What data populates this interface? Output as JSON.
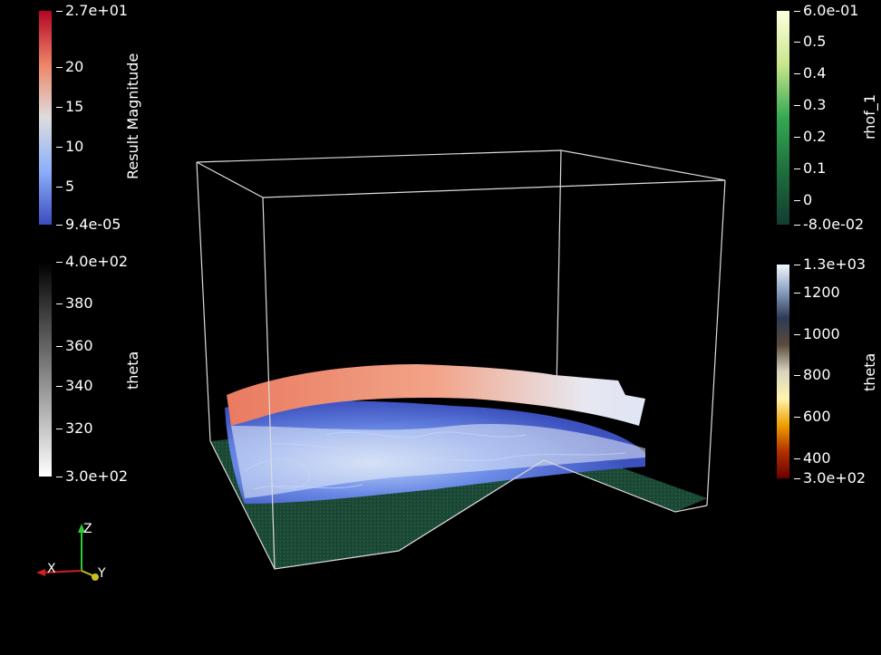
{
  "colorbars": {
    "result_magnitude": {
      "title": "Result Magnitude",
      "max_label": "2.7e+01",
      "min_label": "9.4e-05",
      "ticks": [
        "20",
        "15",
        "10",
        "5"
      ],
      "colors": [
        "#b40426",
        "#ee8468",
        "#dddddd",
        "#8caff9",
        "#3b4cc0"
      ]
    },
    "theta_gray": {
      "title": "theta",
      "max_label": "4.0e+02",
      "min_label": "3.0e+02",
      "ticks": [
        "380",
        "360",
        "340",
        "320"
      ],
      "colors": [
        "#000000",
        "#ffffff"
      ]
    },
    "rhof_1": {
      "title": "rhof_1",
      "max_label": "6.0e-01",
      "min_label": "-8.0e-02",
      "ticks": [
        "0.5",
        "0.4",
        "0.3",
        "0.2",
        "0.1",
        "0"
      ],
      "colors": [
        "#ffffe0",
        "#c8e68c",
        "#34a853",
        "#1e6e3c",
        "#143c32"
      ]
    },
    "theta_color": {
      "title": "theta",
      "max_label": "1.3e+03",
      "min_label": "3.0e+02",
      "ticks": [
        "1200",
        "1000",
        "800",
        "600",
        "400"
      ],
      "colors": [
        "#f2f6ff",
        "#8aa0c0",
        "#2d3a55",
        "#5a4a3a",
        "#d8d2c0",
        "#fff4b0",
        "#f0a000",
        "#b03000",
        "#6b0000"
      ]
    }
  },
  "axes": {
    "x": "X",
    "y": "Y",
    "z": "Z"
  }
}
